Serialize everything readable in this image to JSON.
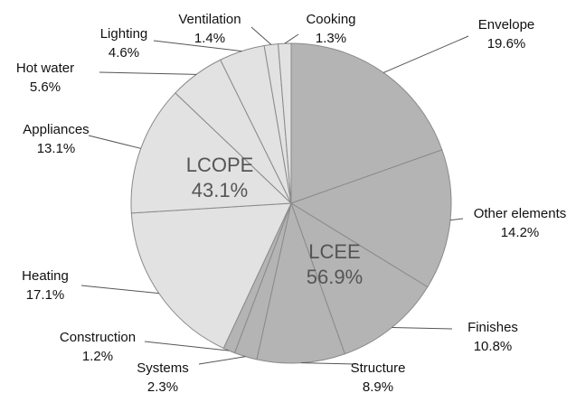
{
  "chart_data": {
    "type": "pie",
    "categories": [
      "Envelope",
      "Other elements",
      "Finishes",
      "Structure",
      "Systems",
      "Construction",
      "Heating",
      "Appliances",
      "Hot water",
      "Lighting",
      "Ventilation",
      "Cooking"
    ],
    "values": [
      19.6,
      14.2,
      10.8,
      8.9,
      2.3,
      1.2,
      17.1,
      13.1,
      5.6,
      4.6,
      1.4,
      1.3
    ],
    "value_labels": [
      "19.6%",
      "14.2%",
      "10.8%",
      "8.9%",
      "2.3%",
      "1.2%",
      "17.1%",
      "13.1%",
      "5.6%",
      "4.6%",
      "1.4%",
      "1.3%"
    ],
    "colors": [
      "#b4b4b4",
      "#b4b4b4",
      "#b4b4b4",
      "#b4b4b4",
      "#b4b4b4",
      "#b4b4b4",
      "#e2e2e2",
      "#e2e2e2",
      "#e2e2e2",
      "#e2e2e2",
      "#e2e2e2",
      "#e2e2e2"
    ],
    "groups": [
      {
        "name": "LCEE",
        "label": "56.9%"
      },
      {
        "name": "LCOPE",
        "label": "43.1%"
      }
    ]
  }
}
